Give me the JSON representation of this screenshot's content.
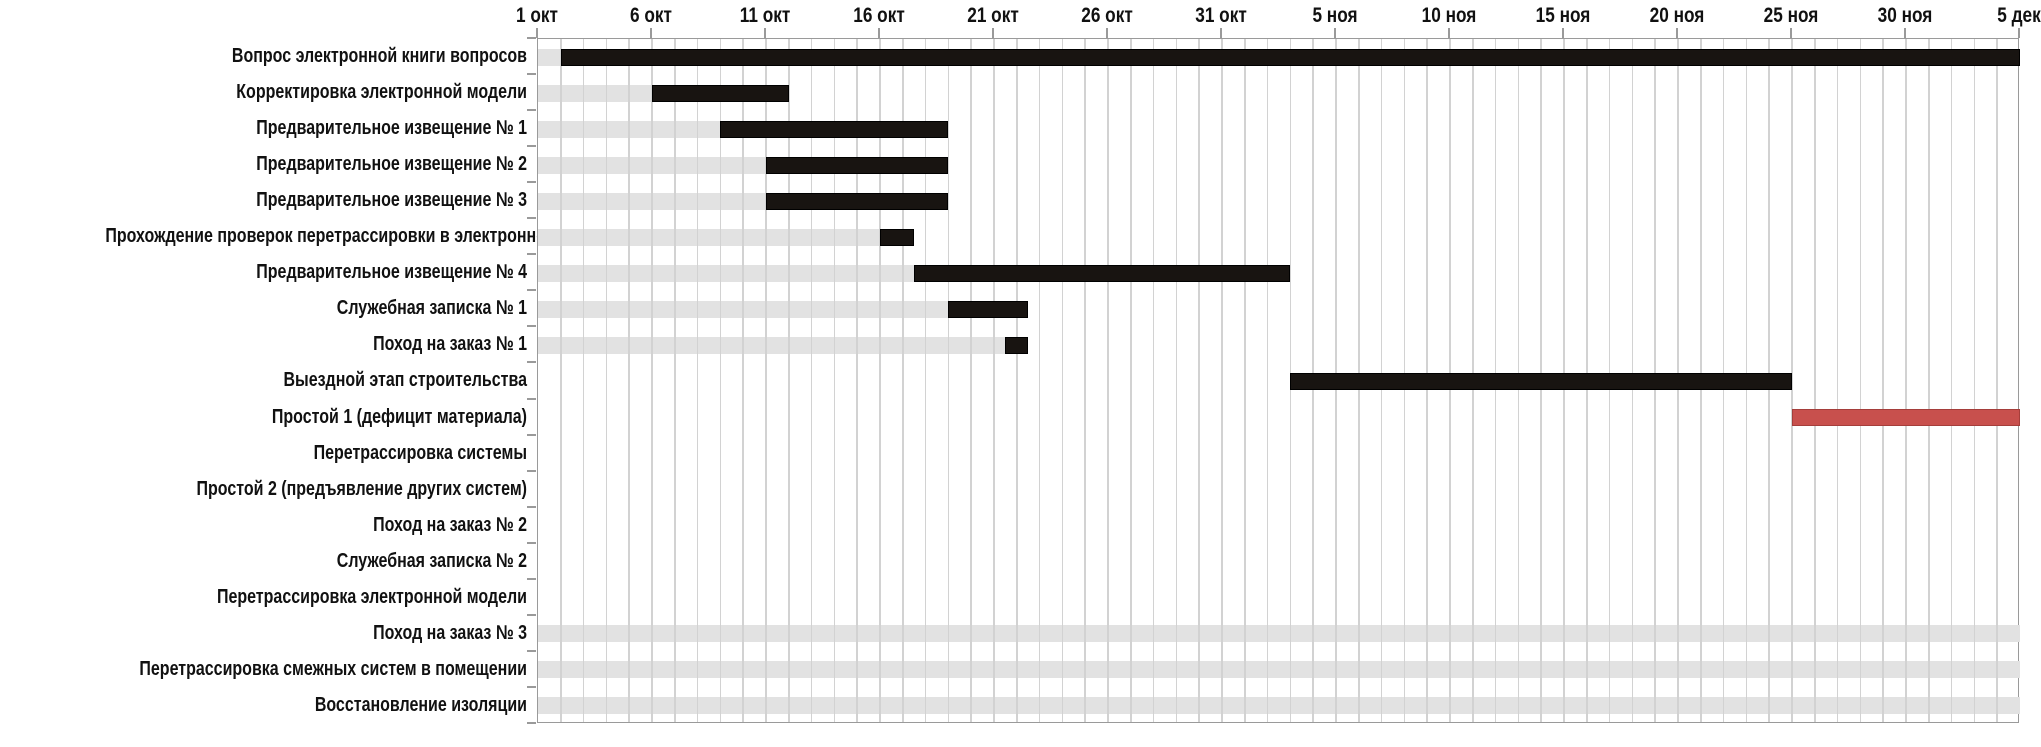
{
  "chart_data": {
    "type": "gantt",
    "title": "",
    "x_axis": {
      "tick_labels": [
        "1 окт",
        "6 окт",
        "11 окт",
        "16 окт",
        "21 окт",
        "26 окт",
        "31 окт",
        "5 ноя",
        "10 ноя",
        "15 ноя",
        "20 ноя",
        "25 ноя",
        "30 ноя",
        "5 дек"
      ],
      "tick_day_offsets": [
        0,
        5,
        10,
        15,
        20,
        25,
        30,
        35,
        40,
        45,
        50,
        55,
        60,
        65
      ],
      "start_label": "1 окт",
      "end_label": "5 дек",
      "total_days": 65,
      "minor_grid_interval_days": 1,
      "grid": "on",
      "legend": "none"
    },
    "tasks": [
      {
        "label": "Вопрос электронной книги вопросов",
        "segments": [
          {
            "kind": "baseline",
            "start": 0,
            "end": 1
          },
          {
            "kind": "actual",
            "start": 1,
            "end": 65
          }
        ]
      },
      {
        "label": "Корректировка электронной модели",
        "segments": [
          {
            "kind": "baseline",
            "start": 0,
            "end": 5
          },
          {
            "kind": "actual",
            "start": 5,
            "end": 11
          }
        ]
      },
      {
        "label": "Предварительное извещение № 1",
        "segments": [
          {
            "kind": "baseline",
            "start": 0,
            "end": 8
          },
          {
            "kind": "actual",
            "start": 8,
            "end": 18
          }
        ]
      },
      {
        "label": "Предварительное извещение № 2",
        "segments": [
          {
            "kind": "baseline",
            "start": 0,
            "end": 10
          },
          {
            "kind": "actual",
            "start": 10,
            "end": 18
          }
        ]
      },
      {
        "label": "Предварительное извещение № 3",
        "segments": [
          {
            "kind": "baseline",
            "start": 0,
            "end": 10
          },
          {
            "kind": "actual",
            "start": 10,
            "end": 18
          }
        ]
      },
      {
        "label": "Прохождение проверок перетрассировки в электронной модели",
        "segments": [
          {
            "kind": "baseline",
            "start": 0,
            "end": 15
          },
          {
            "kind": "actual",
            "start": 15,
            "end": 16.5
          }
        ]
      },
      {
        "label": "Предварительное извещение № 4",
        "segments": [
          {
            "kind": "baseline",
            "start": 0,
            "end": 16.5
          },
          {
            "kind": "actual",
            "start": 16.5,
            "end": 33
          }
        ]
      },
      {
        "label": "Служебная записка № 1",
        "segments": [
          {
            "kind": "baseline",
            "start": 0,
            "end": 18
          },
          {
            "kind": "actual",
            "start": 18,
            "end": 21.5
          }
        ]
      },
      {
        "label": "Поход на заказ № 1",
        "segments": [
          {
            "kind": "baseline",
            "start": 0,
            "end": 20.5
          },
          {
            "kind": "actual",
            "start": 20.5,
            "end": 21.5
          }
        ]
      },
      {
        "label": "Выездной этап строительства",
        "segments": [
          {
            "kind": "actual",
            "start": 33,
            "end": 55
          }
        ]
      },
      {
        "label": "Простой 1 (дефицит материала)",
        "segments": [
          {
            "kind": "delay",
            "start": 55,
            "end": 65
          }
        ]
      },
      {
        "label": "Перетрассировка системы",
        "segments": []
      },
      {
        "label": "Простой 2 (предъявление других систем)",
        "segments": []
      },
      {
        "label": "Поход на заказ № 2",
        "segments": []
      },
      {
        "label": "Служебная записка № 2",
        "segments": []
      },
      {
        "label": "Перетрассировка электронной модели",
        "segments": []
      },
      {
        "label": "Поход на заказ № 3",
        "segments": [
          {
            "kind": "baseline",
            "start": 0,
            "end": 65
          }
        ]
      },
      {
        "label": "Перетрассировка смежных систем в помещении",
        "segments": [
          {
            "kind": "baseline",
            "start": 0,
            "end": 65
          }
        ]
      },
      {
        "label": "Восстановление изоляции",
        "segments": [
          {
            "kind": "baseline",
            "start": 0,
            "end": 65
          }
        ]
      }
    ],
    "colors": {
      "actual": "#181411",
      "baseline": "#e2e2e2",
      "delay": "#c8504d",
      "delay_border": "#a53e3b",
      "grid": "#d2d2d2",
      "axis": "#9a9a9a",
      "text": "#111111"
    }
  }
}
